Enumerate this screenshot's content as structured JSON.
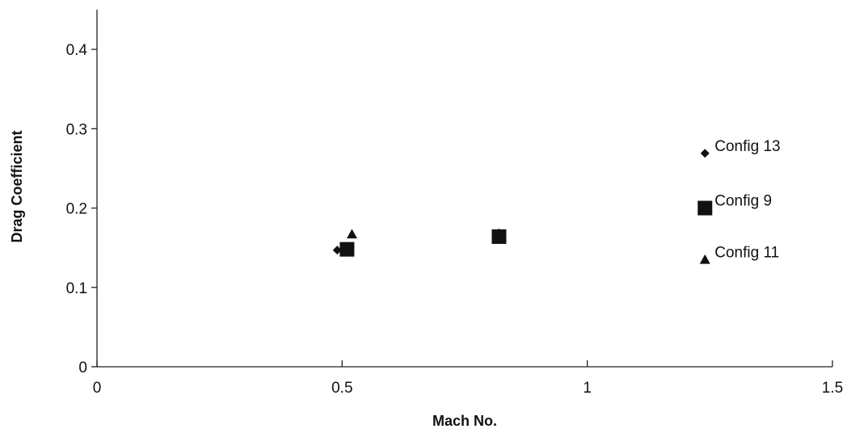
{
  "chart_data": {
    "type": "scatter",
    "title": "",
    "xlabel": "Mach No.",
    "ylabel": "Drag Coefficient",
    "xlim": [
      0,
      1.5
    ],
    "ylim": [
      0,
      0.45
    ],
    "x_ticks": [
      "0",
      "0.5",
      "1",
      "1.5"
    ],
    "x_tick_values": [
      0,
      0.5,
      1,
      1.5
    ],
    "y_ticks": [
      "0",
      "0.1",
      "0.2",
      "0.3",
      "0.4"
    ],
    "y_tick_values": [
      0,
      0.1,
      0.2,
      0.3,
      0.4
    ],
    "grid": false,
    "legend": "none",
    "series": [
      {
        "name": "Config 13",
        "marker": "diamond",
        "x": [
          0.49,
          0.82,
          1.24
        ],
        "y": [
          0.147,
          0.166,
          0.269
        ]
      },
      {
        "name": "Config 9",
        "marker": "square",
        "x": [
          0.51,
          0.82,
          1.24
        ],
        "y": [
          0.148,
          0.164,
          0.2
        ]
      },
      {
        "name": "Config 11",
        "marker": "triangle",
        "x": [
          0.52,
          0.82,
          1.24
        ],
        "y": [
          0.167,
          0.168,
          0.135
        ]
      }
    ]
  }
}
